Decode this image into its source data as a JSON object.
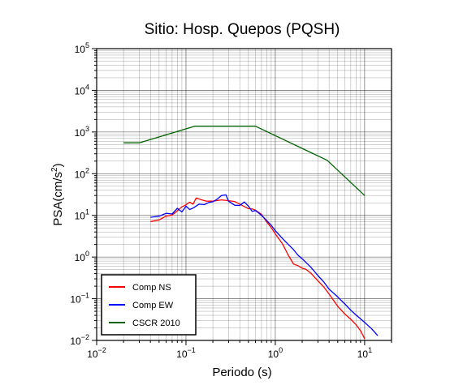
{
  "chart_data": {
    "type": "line",
    "title": "Sitio: Hosp. Quepos (PQSH)",
    "xlabel": "Periodo (s)",
    "ylabel": "PSA(cm/s²)",
    "ylabel_base": "PSA(cm/s",
    "ylabel_sup": "2",
    "ylabel_tail": ")",
    "x_scale": "log",
    "y_scale": "log",
    "xlim": [
      0.01,
      20
    ],
    "ylim": [
      0.01,
      100000
    ],
    "grid": true,
    "legend_position": "bottom-left",
    "x_ticks": [
      {
        "value": 0.01,
        "base": "10",
        "exp": "−2"
      },
      {
        "value": 0.1,
        "base": "10",
        "exp": "−1"
      },
      {
        "value": 1,
        "base": "10",
        "exp": "0"
      },
      {
        "value": 10,
        "base": "10",
        "exp": "1"
      }
    ],
    "y_ticks": [
      {
        "value": 0.01,
        "base": "10",
        "exp": "−2"
      },
      {
        "value": 0.1,
        "base": "10",
        "exp": "−1"
      },
      {
        "value": 1,
        "base": "10",
        "exp": "0"
      },
      {
        "value": 10,
        "base": "10",
        "exp": "1"
      },
      {
        "value": 100,
        "base": "10",
        "exp": "2"
      },
      {
        "value": 1000,
        "base": "10",
        "exp": "3"
      },
      {
        "value": 10000,
        "base": "10",
        "exp": "4"
      },
      {
        "value": 100000,
        "base": "10",
        "exp": "5"
      }
    ],
    "series": [
      {
        "name": "Comp NS",
        "color": "#ff0000",
        "points": [
          [
            0.04,
            7.1
          ],
          [
            0.05,
            7.8
          ],
          [
            0.06,
            9.6
          ],
          [
            0.07,
            10.2
          ],
          [
            0.08,
            12.8
          ],
          [
            0.09,
            16.0
          ],
          [
            0.1,
            17.9
          ],
          [
            0.11,
            20.7
          ],
          [
            0.12,
            18.6
          ],
          [
            0.13,
            26.1
          ],
          [
            0.15,
            23.5
          ],
          [
            0.17,
            21.9
          ],
          [
            0.2,
            21.9
          ],
          [
            0.25,
            23.5
          ],
          [
            0.3,
            22.5
          ],
          [
            0.35,
            21.5
          ],
          [
            0.4,
            18.6
          ],
          [
            0.5,
            14.5
          ],
          [
            0.55,
            14.3
          ],
          [
            0.6,
            13.3
          ],
          [
            0.7,
            10.6
          ],
          [
            0.8,
            7.0
          ],
          [
            0.9,
            5.1
          ],
          [
            1.0,
            3.6
          ],
          [
            1.2,
            2.1
          ],
          [
            1.4,
            1.1
          ],
          [
            1.6,
            0.68
          ],
          [
            1.8,
            0.62
          ],
          [
            2.0,
            0.54
          ],
          [
            2.2,
            0.51
          ],
          [
            2.5,
            0.41
          ],
          [
            3.0,
            0.27
          ],
          [
            3.5,
            0.19
          ],
          [
            4.0,
            0.13
          ],
          [
            5.0,
            0.066
          ],
          [
            6.0,
            0.043
          ],
          [
            7.0,
            0.032
          ],
          [
            8.0,
            0.024
          ],
          [
            9.0,
            0.017
          ],
          [
            10.0,
            0.011
          ]
        ]
      },
      {
        "name": "Comp EW",
        "color": "#0000ff",
        "points": [
          [
            0.04,
            9.0
          ],
          [
            0.05,
            9.6
          ],
          [
            0.06,
            11.2
          ],
          [
            0.07,
            10.8
          ],
          [
            0.08,
            14.8
          ],
          [
            0.09,
            12.1
          ],
          [
            0.1,
            16.7
          ],
          [
            0.11,
            13.8
          ],
          [
            0.12,
            15.0
          ],
          [
            0.14,
            18.6
          ],
          [
            0.16,
            18.1
          ],
          [
            0.18,
            20.3
          ],
          [
            0.2,
            21.2
          ],
          [
            0.22,
            24.0
          ],
          [
            0.25,
            29.8
          ],
          [
            0.28,
            31.1
          ],
          [
            0.3,
            21.9
          ],
          [
            0.35,
            17.5
          ],
          [
            0.4,
            17.3
          ],
          [
            0.45,
            20.9
          ],
          [
            0.5,
            16.7
          ],
          [
            0.55,
            12.5
          ],
          [
            0.6,
            13.1
          ],
          [
            0.65,
            11.4
          ],
          [
            0.7,
            10.0
          ],
          [
            0.8,
            7.5
          ],
          [
            0.9,
            5.8
          ],
          [
            1.0,
            4.3
          ],
          [
            1.2,
            2.8
          ],
          [
            1.4,
            2.0
          ],
          [
            1.6,
            1.5
          ],
          [
            1.8,
            1.1
          ],
          [
            2.0,
            0.91
          ],
          [
            2.5,
            0.57
          ],
          [
            3.0,
            0.36
          ],
          [
            3.5,
            0.25
          ],
          [
            4.0,
            0.17
          ],
          [
            5.0,
            0.11
          ],
          [
            6.0,
            0.075
          ],
          [
            7.0,
            0.053
          ],
          [
            8.0,
            0.041
          ],
          [
            10.0,
            0.027
          ],
          [
            12.0,
            0.019
          ],
          [
            14.0,
            0.013
          ]
        ]
      },
      {
        "name": "CSCR 2010",
        "color": "#006400",
        "points": [
          [
            0.02,
            550
          ],
          [
            0.03,
            550
          ],
          [
            0.125,
            1380
          ],
          [
            0.6,
            1380
          ],
          [
            3.8,
            210
          ],
          [
            10.0,
            30
          ]
        ]
      }
    ]
  }
}
